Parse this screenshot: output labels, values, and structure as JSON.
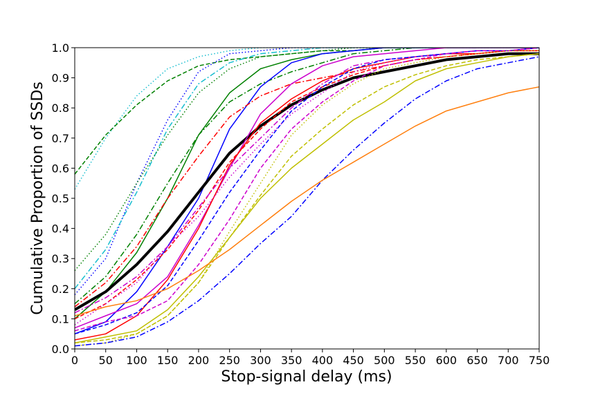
{
  "chart_data": {
    "type": "line",
    "title": "",
    "xlabel": "Stop-signal delay (ms)",
    "ylabel": "Cumulative Proportion of SSDs",
    "xlim": [
      0,
      750
    ],
    "ylim": [
      0,
      1.0
    ],
    "xticks": [
      "0",
      "50",
      "100",
      "150",
      "200",
      "250",
      "300",
      "350",
      "400",
      "450",
      "500",
      "550",
      "600",
      "650",
      "700",
      "750"
    ],
    "yticks": [
      "0.0",
      "0.1",
      "0.2",
      "0.3",
      "0.4",
      "0.5",
      "0.6",
      "0.7",
      "0.8",
      "0.9",
      "1.0"
    ],
    "grid": false,
    "legend": "none",
    "x": [
      0,
      50,
      100,
      150,
      200,
      250,
      300,
      350,
      400,
      450,
      500,
      550,
      600,
      650,
      700,
      750
    ],
    "series": [
      {
        "color": "#17becf",
        "dash": "dotted",
        "values": [
          0.53,
          0.7,
          0.84,
          0.93,
          0.97,
          0.99,
          1.0,
          1.0,
          1.0,
          1.0,
          1.0,
          1.0,
          1.0,
          1.0,
          1.0,
          1.0
        ]
      },
      {
        "color": "#008000",
        "dash": "dashed",
        "values": [
          0.58,
          0.71,
          0.81,
          0.89,
          0.94,
          0.96,
          0.97,
          0.98,
          0.99,
          0.99,
          1.0,
          1.0,
          1.0,
          1.0,
          1.0,
          1.0
        ]
      },
      {
        "color": "#0000ff",
        "dash": "dotted",
        "values": [
          0.18,
          0.3,
          0.55,
          0.76,
          0.92,
          0.98,
          0.99,
          1.0,
          1.0,
          1.0,
          1.0,
          1.0,
          1.0,
          1.0,
          1.0,
          1.0
        ]
      },
      {
        "color": "#17becf",
        "dash": "dashdot",
        "values": [
          0.2,
          0.33,
          0.52,
          0.73,
          0.88,
          0.95,
          0.98,
          0.99,
          1.0,
          1.0,
          1.0,
          1.0,
          1.0,
          1.0,
          1.0,
          1.0
        ]
      },
      {
        "color": "#008000",
        "dash": "dotted",
        "values": [
          0.26,
          0.38,
          0.55,
          0.71,
          0.85,
          0.93,
          0.97,
          0.98,
          0.99,
          1.0,
          1.0,
          1.0,
          1.0,
          1.0,
          1.0,
          1.0
        ]
      },
      {
        "color": "#008000",
        "dash": "solid",
        "values": [
          0.1,
          0.19,
          0.32,
          0.5,
          0.71,
          0.85,
          0.93,
          0.96,
          0.98,
          0.99,
          1.0,
          1.0,
          1.0,
          1.0,
          1.0,
          1.0
        ]
      },
      {
        "color": "#008000",
        "dash": "dashdot",
        "values": [
          0.15,
          0.24,
          0.38,
          0.55,
          0.71,
          0.82,
          0.88,
          0.92,
          0.95,
          0.98,
          0.99,
          1.0,
          1.0,
          1.0,
          1.0,
          1.0
        ]
      },
      {
        "color": "#0000ff",
        "dash": "solid",
        "values": [
          0.05,
          0.09,
          0.19,
          0.34,
          0.5,
          0.73,
          0.87,
          0.95,
          0.98,
          0.99,
          1.0,
          1.0,
          1.0,
          1.0,
          1.0,
          1.0
        ]
      },
      {
        "color": "#ff0000",
        "dash": "dashdot",
        "values": [
          0.14,
          0.22,
          0.34,
          0.5,
          0.64,
          0.77,
          0.84,
          0.88,
          0.9,
          0.92,
          0.94,
          0.96,
          0.97,
          0.98,
          0.99,
          1.0
        ]
      },
      {
        "color": "#000000",
        "dash": "solid",
        "width": 4,
        "values": [
          0.13,
          0.19,
          0.28,
          0.39,
          0.52,
          0.65,
          0.74,
          0.81,
          0.86,
          0.9,
          0.92,
          0.94,
          0.96,
          0.97,
          0.98,
          0.98
        ]
      },
      {
        "color": "#cc00cc",
        "dash": "solid",
        "values": [
          0.07,
          0.11,
          0.15,
          0.24,
          0.41,
          0.6,
          0.78,
          0.88,
          0.94,
          0.97,
          0.98,
          0.99,
          1.0,
          1.0,
          1.0,
          1.0
        ]
      },
      {
        "color": "#ff0000",
        "dash": "solid",
        "values": [
          0.03,
          0.05,
          0.11,
          0.23,
          0.4,
          0.61,
          0.75,
          0.83,
          0.89,
          0.93,
          0.95,
          0.97,
          0.98,
          0.98,
          0.99,
          0.99
        ]
      },
      {
        "color": "#ff0000",
        "dash": "dashed",
        "values": [
          0.1,
          0.15,
          0.23,
          0.33,
          0.46,
          0.62,
          0.73,
          0.82,
          0.87,
          0.91,
          0.94,
          0.96,
          0.97,
          0.98,
          0.99,
          0.99
        ]
      },
      {
        "color": "#cc00cc",
        "dash": "dashdot",
        "values": [
          0.12,
          0.17,
          0.24,
          0.34,
          0.47,
          0.6,
          0.7,
          0.8,
          0.88,
          0.94,
          0.96,
          0.97,
          0.98,
          0.99,
          0.99,
          1.0
        ]
      },
      {
        "color": "#cc00cc",
        "dash": "dotted",
        "values": [
          0.08,
          0.15,
          0.22,
          0.34,
          0.44,
          0.57,
          0.68,
          0.78,
          0.85,
          0.92,
          0.95,
          0.97,
          0.98,
          0.99,
          0.99,
          1.0
        ]
      },
      {
        "color": "#0000ff",
        "dash": "dashed",
        "values": [
          0.05,
          0.08,
          0.12,
          0.21,
          0.36,
          0.52,
          0.66,
          0.79,
          0.87,
          0.93,
          0.96,
          0.97,
          0.98,
          0.99,
          0.99,
          1.0
        ]
      },
      {
        "color": "#cc00cc",
        "dash": "dashed",
        "values": [
          0.06,
          0.09,
          0.11,
          0.16,
          0.28,
          0.43,
          0.6,
          0.73,
          0.82,
          0.89,
          0.94,
          0.96,
          0.98,
          0.99,
          0.99,
          1.0
        ]
      },
      {
        "color": "#bfbf00",
        "dash": "dotted",
        "values": [
          0.01,
          0.02,
          0.05,
          0.11,
          0.22,
          0.39,
          0.55,
          0.71,
          0.81,
          0.88,
          0.93,
          0.95,
          0.97,
          0.98,
          0.99,
          0.99
        ]
      },
      {
        "color": "#bfbf00",
        "dash": "dashed",
        "values": [
          0.02,
          0.03,
          0.05,
          0.11,
          0.22,
          0.37,
          0.51,
          0.64,
          0.73,
          0.81,
          0.87,
          0.91,
          0.94,
          0.96,
          0.97,
          0.98
        ]
      },
      {
        "color": "#bfbf00",
        "dash": "solid",
        "values": [
          0.02,
          0.04,
          0.06,
          0.13,
          0.24,
          0.37,
          0.5,
          0.6,
          0.68,
          0.76,
          0.82,
          0.89,
          0.93,
          0.95,
          0.97,
          0.98
        ]
      },
      {
        "color": "#0000ff",
        "dash": "dashdot",
        "values": [
          0.01,
          0.02,
          0.04,
          0.09,
          0.16,
          0.25,
          0.35,
          0.44,
          0.56,
          0.66,
          0.75,
          0.83,
          0.89,
          0.93,
          0.95,
          0.97
        ]
      },
      {
        "color": "#ff7f0e",
        "dash": "solid",
        "values": [
          0.11,
          0.14,
          0.16,
          0.2,
          0.26,
          0.33,
          0.41,
          0.49,
          0.56,
          0.62,
          0.68,
          0.74,
          0.79,
          0.82,
          0.85,
          0.87
        ]
      }
    ]
  }
}
